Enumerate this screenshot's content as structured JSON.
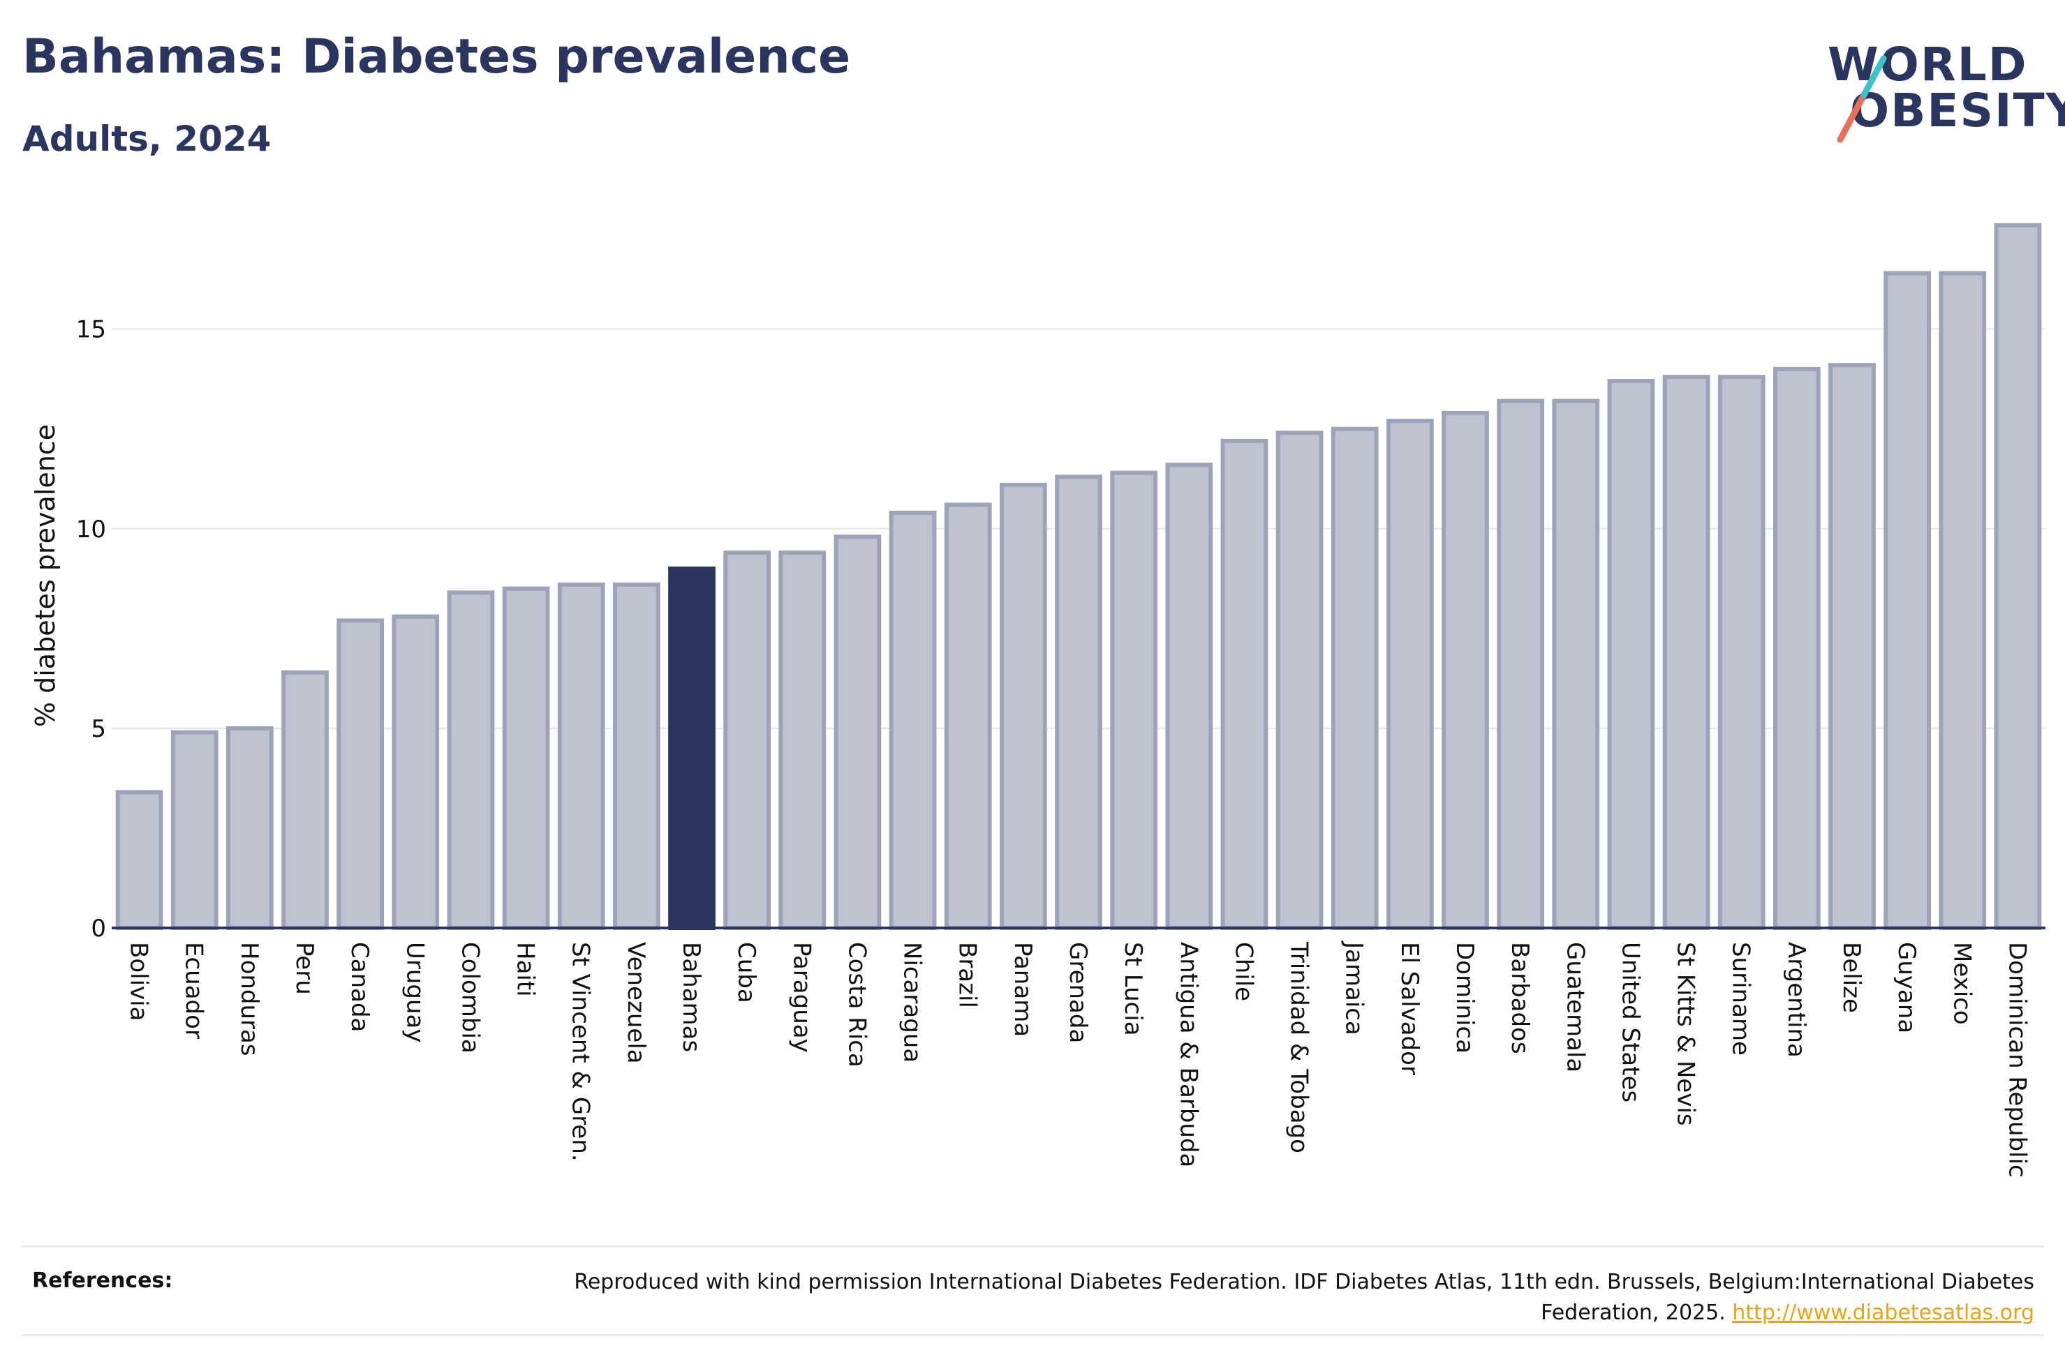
{
  "header": {
    "title": "Bahamas: Diabetes prevalence",
    "subtitle": "Adults, 2024"
  },
  "logo": {
    "line1": "WORLD",
    "line2": "OBESITY",
    "stroke_colors": [
      "#e8705a",
      "#3fc1c9"
    ]
  },
  "colors": {
    "highlight": "#2a3560",
    "bar_fill": "#bfc2cf",
    "bar_stroke": "#9ea3b9",
    "grid": "#e6e6e6",
    "axis": "#2a3560"
  },
  "chart_data": {
    "type": "bar",
    "title": "Bahamas: Diabetes prevalence",
    "subtitle": "Adults, 2024",
    "ylabel": "% diabetes prevalence",
    "xlabel": "",
    "ylim": [
      0,
      18
    ],
    "yticks": [
      0,
      5,
      10,
      15
    ],
    "grid": true,
    "highlight": "Bahamas",
    "categories": [
      "Bolivia",
      "Ecuador",
      "Honduras",
      "Peru",
      "Canada",
      "Uruguay",
      "Colombia",
      "Haiti",
      "St Vincent & Gren.",
      "Venezuela",
      "Bahamas",
      "Cuba",
      "Paraguay",
      "Costa Rica",
      "Nicaragua",
      "Brazil",
      "Panama",
      "Grenada",
      "St Lucia",
      "Antigua & Barbuda",
      "Chile",
      "Trinidad & Tobago",
      "Jamaica",
      "El Salvador",
      "Dominica",
      "Barbados",
      "Guatemala",
      "United States",
      "St Kitts & Nevis",
      "Suriname",
      "Argentina",
      "Belize",
      "Guyana",
      "Mexico",
      "Dominican Republic"
    ],
    "values": [
      3.4,
      4.9,
      5.0,
      6.4,
      7.7,
      7.8,
      8.4,
      8.5,
      8.6,
      8.6,
      9.0,
      9.4,
      9.4,
      9.8,
      10.4,
      10.6,
      11.1,
      11.3,
      11.4,
      11.6,
      12.2,
      12.4,
      12.5,
      12.7,
      12.9,
      13.2,
      13.2,
      13.7,
      13.8,
      13.8,
      14.0,
      14.1,
      16.4,
      16.4,
      17.6
    ]
  },
  "references": {
    "label": "References:",
    "text": "Reproduced with kind permission International Diabetes Federation. IDF Diabetes Atlas, 11th edn. Brussels, Belgium:International Diabetes Federation, 2025.",
    "link": "http://www.diabetesatlas.org"
  }
}
